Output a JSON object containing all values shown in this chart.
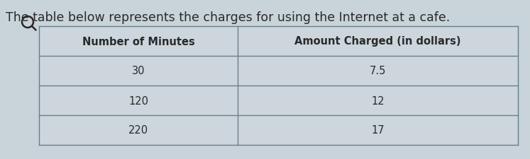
{
  "title": "The table below represents the charges for using the Internet at a cafe.",
  "col_headers": [
    "Number of Minutes",
    "Amount Charged (in dollars)"
  ],
  "rows": [
    [
      "30",
      "7.5"
    ],
    [
      "120",
      "12"
    ],
    [
      "220",
      "17"
    ]
  ],
  "bg_color": "#c8d4da",
  "table_bg": "#ccd6dc",
  "border_color": "#6a7e8a",
  "text_color": "#2a2a2a",
  "title_color": "#2a2a2a",
  "title_fontsize": 12.5,
  "header_fontsize": 10.5,
  "cell_fontsize": 10.5
}
